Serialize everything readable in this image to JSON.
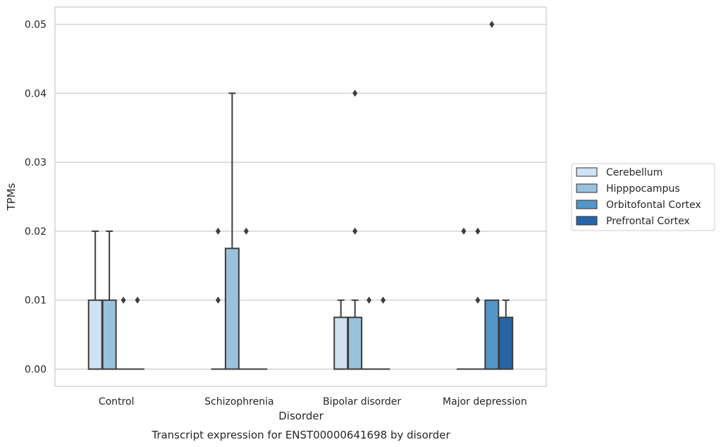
{
  "chart_data": {
    "type": "box",
    "title": "Transcript expression for ENST00000641698 by disorder",
    "xlabel": "Disorder",
    "ylabel": "TPMs",
    "categories": [
      "Control",
      "Schizophrenia",
      "Bipolar disorder",
      "Major depression"
    ],
    "ylim": [
      -0.0025,
      0.0525
    ],
    "yticks": [
      0.0,
      0.01,
      0.02,
      0.03,
      0.04,
      0.05
    ],
    "ytick_labels": [
      "0.00",
      "0.01",
      "0.02",
      "0.03",
      "0.04",
      "0.05"
    ],
    "grid": true,
    "legend_position": "right",
    "series": [
      {
        "name": "Cerebellum",
        "color": "#d0e1f2",
        "boxes": [
          {
            "min": 0,
            "q1": 0,
            "median": 0,
            "q3": 0.01,
            "max": 0.02,
            "outliers": []
          },
          {
            "min": 0,
            "q1": 0,
            "median": 0,
            "q3": 0,
            "max": 0,
            "outliers": [
              0.02,
              0.01
            ]
          },
          {
            "min": 0,
            "q1": 0,
            "median": 0,
            "q3": 0.0075,
            "max": 0.01,
            "outliers": []
          },
          {
            "min": 0,
            "q1": 0,
            "median": 0,
            "q3": 0,
            "max": 0,
            "outliers": [
              0.02
            ]
          }
        ]
      },
      {
        "name": "Hipppocampus",
        "color": "#9ac2dd",
        "boxes": [
          {
            "min": 0,
            "q1": 0,
            "median": 0,
            "q3": 0.01,
            "max": 0.02,
            "outliers": []
          },
          {
            "min": 0,
            "q1": 0,
            "median": 0,
            "q3": 0.0175,
            "max": 0.04,
            "outliers": []
          },
          {
            "min": 0,
            "q1": 0,
            "median": 0,
            "q3": 0.0075,
            "max": 0.01,
            "outliers": [
              0.04,
              0.02
            ]
          },
          {
            "min": 0,
            "q1": 0,
            "median": 0,
            "q3": 0,
            "max": 0,
            "outliers": [
              0.02,
              0.01
            ]
          }
        ]
      },
      {
        "name": "Orbitofontal Cortex",
        "color": "#5396c7",
        "boxes": [
          {
            "min": 0,
            "q1": 0,
            "median": 0,
            "q3": 0,
            "max": 0,
            "outliers": [
              0.01
            ]
          },
          {
            "min": 0,
            "q1": 0,
            "median": 0,
            "q3": 0,
            "max": 0,
            "outliers": [
              0.02
            ]
          },
          {
            "min": 0,
            "q1": 0,
            "median": 0,
            "q3": 0,
            "max": 0,
            "outliers": [
              0.01
            ]
          },
          {
            "min": 0,
            "q1": 0,
            "median": 0,
            "q3": 0.01,
            "max": 0.01,
            "outliers": [
              0.05
            ]
          }
        ]
      },
      {
        "name": "Prefrontal Cortex",
        "color": "#2765a8",
        "boxes": [
          {
            "min": 0,
            "q1": 0,
            "median": 0,
            "q3": 0,
            "max": 0,
            "outliers": [
              0.01
            ]
          },
          {
            "min": 0,
            "q1": 0,
            "median": 0,
            "q3": 0,
            "max": 0,
            "outliers": []
          },
          {
            "min": 0,
            "q1": 0,
            "median": 0,
            "q3": 0,
            "max": 0,
            "outliers": [
              0.01
            ]
          },
          {
            "min": 0,
            "q1": 0,
            "median": 0,
            "q3": 0.0075,
            "max": 0.01,
            "outliers": []
          }
        ]
      }
    ]
  }
}
